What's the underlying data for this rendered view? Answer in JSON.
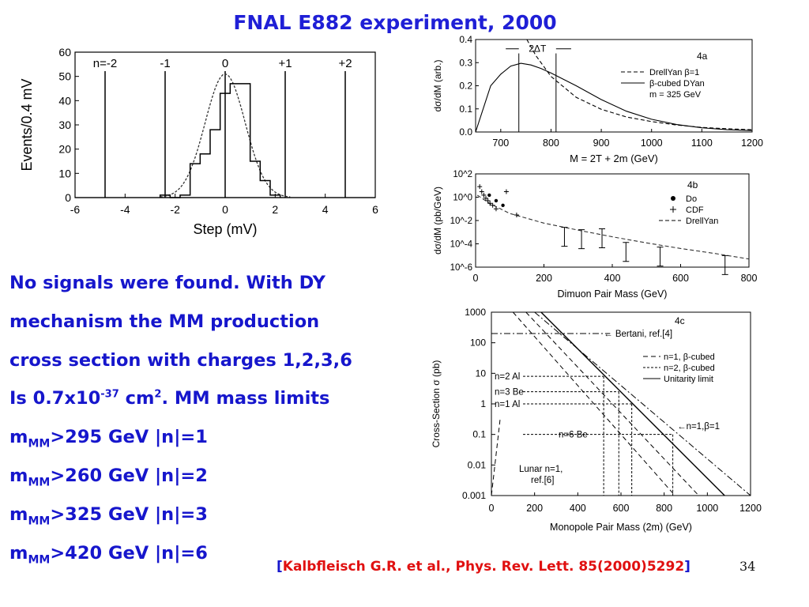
{
  "title": "FNAL E882 experiment, 2000",
  "text": {
    "l1": "No signals were found. With DY",
    "l2": "mechanism the MM production",
    "l3": "cross section with charges 1,2,3,6",
    "l4a": "Is 0.7x10",
    "l4sup": "-37",
    "l4b": " cm",
    "l4sup2": "2",
    "l4c": ". MM mass limits",
    "m1a": "m",
    "m1sub": "MM",
    "m1b": ">295 GeV |n|=1",
    "m2a": "m",
    "m2sub": "MM",
    "m2b": ">260 GeV |n|=2",
    "m3a": "m",
    "m3sub": "MM",
    "m3b": ">325 GeV |n|=3",
    "m4a": "m",
    "m4sub": "MM",
    "m4b": ">420 GeV |n|=6"
  },
  "reference": {
    "open": "[",
    "text": "Kalbfleisch G.R.  et al., Phys. Rev. Lett. 85(2000)5292",
    "close": "]"
  },
  "page_number": "34",
  "colors": {
    "title": "#1f1fd6",
    "body": "#1616cc",
    "reference": "#e01010"
  },
  "chart_data": [
    {
      "type": "line",
      "xlabel": "Step  (mV)",
      "ylabel": "Events/0.4 mV",
      "xlim": [
        -6,
        6
      ],
      "ylim": [
        0,
        60
      ],
      "xticks": [
        "-6",
        "-4",
        "-2",
        "0",
        "2",
        "4",
        "6"
      ],
      "yticks": [
        "0",
        "10",
        "20",
        "30",
        "40",
        "50",
        "60"
      ],
      "markers": [
        {
          "label": "n=-2",
          "x": -4.8
        },
        {
          "label": "-1",
          "x": -2.4
        },
        {
          "label": "0",
          "x": 0
        },
        {
          "label": "+1",
          "x": 2.4
        },
        {
          "label": "+2",
          "x": 4.8
        }
      ],
      "histogram": {
        "x": [
          -2.6,
          -2.2,
          -1.8,
          -1.4,
          -1.0,
          -0.6,
          -0.2,
          0.2,
          0.6,
          1.0,
          1.4,
          1.8
        ],
        "values": [
          1,
          0,
          1,
          14,
          18,
          28,
          43,
          47,
          47,
          15,
          7,
          1
        ]
      },
      "gaussian": {
        "mean": 0,
        "peak": 51,
        "sigma": 0.8
      }
    },
    {
      "type": "line",
      "panel": "4a",
      "xlabel": "M = 2T + 2m  (GeV)",
      "ylabel": "dσ/dM (arb.)",
      "xlim": [
        650,
        1200
      ],
      "ylim": [
        0,
        0.4
      ],
      "xticks": [
        "700",
        "800",
        "900",
        "1000",
        "1100",
        "1200"
      ],
      "yticks": [
        "0.0",
        "0.1",
        "0.2",
        "0.3",
        "0.4"
      ],
      "annotation": "2ΔT",
      "legend": [
        "DrellYan β=1",
        "β-cubed DYan",
        "m = 325 GeV"
      ],
      "series": [
        {
          "name": "DrellYan β=1",
          "x": [
            752,
            770,
            800,
            850,
            900,
            950,
            1000,
            1050,
            1100,
            1150,
            1200
          ],
          "values": [
            0.4,
            0.33,
            0.24,
            0.15,
            0.098,
            0.065,
            0.045,
            0.03,
            0.02,
            0.014,
            0.01
          ]
        },
        {
          "name": "β-cubed DYan",
          "x": [
            650,
            680,
            700,
            720,
            740,
            760,
            780,
            800,
            850,
            900,
            950,
            1000,
            1050,
            1100,
            1150,
            1200
          ],
          "values": [
            0,
            0.2,
            0.25,
            0.285,
            0.297,
            0.29,
            0.275,
            0.255,
            0.2,
            0.14,
            0.09,
            0.055,
            0.032,
            0.018,
            0.01,
            0.006
          ]
        }
      ],
      "vlines": [
        736,
        810
      ]
    },
    {
      "type": "scatter",
      "panel": "4b",
      "xlabel": "Dimuon Pair Mass (GeV)",
      "ylabel": "dσ/dM   (pb/GeV)",
      "xlim": [
        0,
        800
      ],
      "ylim_log10": [
        -6,
        2
      ],
      "xticks": [
        "0",
        "200",
        "400",
        "600",
        "800"
      ],
      "ytick_labels": [
        "10^2",
        "10^0",
        "10^-2",
        "10^-4",
        "10^-6"
      ],
      "legend": [
        "Do",
        "CDF",
        "DrellYan"
      ],
      "series": [
        {
          "name": "DrellYan",
          "x": [
            5,
            40,
            100,
            200,
            300,
            400,
            500,
            600,
            700,
            800
          ],
          "values": [
            1.5,
            0.3,
            0.04,
            0.006,
            0.0015,
            0.0004,
            0.00012,
            4e-05,
            1.5e-05,
            5e-06
          ]
        },
        {
          "name": "CDF",
          "x": [
            12,
            18,
            24,
            30,
            36,
            42,
            50,
            60,
            90,
            120
          ],
          "values": [
            8,
            3,
            1.5,
            0.8,
            0.5,
            0.3,
            0.2,
            0.1,
            3,
            0.03
          ]
        },
        {
          "name": "Do",
          "x": [
            40,
            60,
            80
          ],
          "values": [
            1.5,
            0.5,
            0.2
          ]
        }
      ],
      "upper_limits": [
        {
          "x": 260,
          "v": 0.0004
        },
        {
          "x": 310,
          "v": 0.00025
        },
        {
          "x": 370,
          "v": 0.0003
        },
        {
          "x": 440,
          "v": 2e-05
        },
        {
          "x": 540,
          "v": 8e-06
        },
        {
          "x": 730,
          "v": 1.5e-06
        }
      ]
    },
    {
      "type": "line",
      "panel": "4c",
      "xlabel": "Monopole Pair Mass  (2m)  (GeV)",
      "ylabel": "Cross-Section   σ (pb)",
      "xlim": [
        0,
        1200
      ],
      "ylim_log10": [
        -3,
        3
      ],
      "xticks": [
        "0",
        "200",
        "400",
        "600",
        "800",
        "1000",
        "1200"
      ],
      "yticks": [
        "0.001",
        "0.01",
        "0.1",
        "1",
        "10",
        "100",
        "1000"
      ],
      "legend": [
        "n=1, β-cubed",
        "n=2, β-cubed",
        "Unitarity limit"
      ],
      "annotations": [
        "Bertani, ref.[4]",
        "n=1,β=1",
        "Lunar n=1, ref.[6]",
        "n=2 Al",
        "n=3 Be",
        "n=1 Al",
        "n=6 Be"
      ],
      "hlines": [
        {
          "label": "n=2 Al",
          "y": 8,
          "x2": 520
        },
        {
          "label": "n=3 Be",
          "y": 2.5,
          "x2": 590
        },
        {
          "label": "n=1 Al",
          "y": 1,
          "x2": 650
        },
        {
          "label": "n=6 Be",
          "y": 0.1,
          "x2": 840
        }
      ]
    }
  ]
}
